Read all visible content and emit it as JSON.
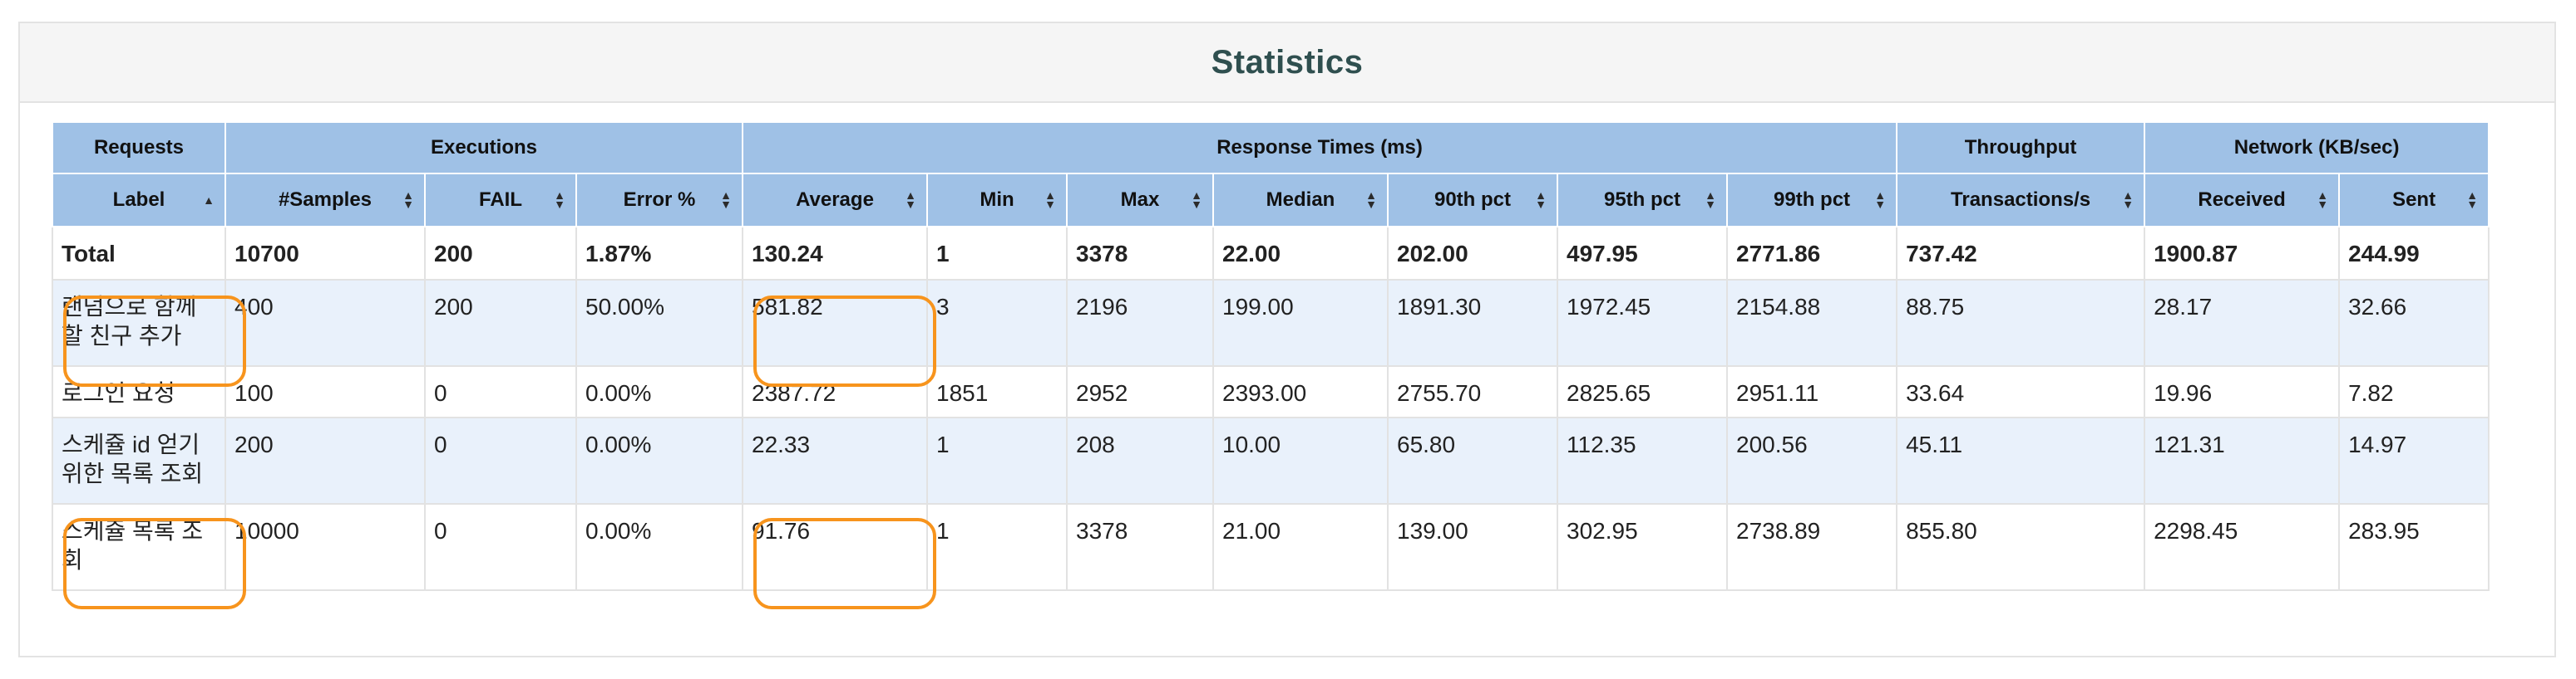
{
  "panel": {
    "title": "Statistics"
  },
  "table": {
    "groups": {
      "requests": "Requests",
      "executions": "Executions",
      "response_times": "Response Times (ms)",
      "throughput": "Throughput",
      "network": "Network (KB/sec)"
    },
    "columns": [
      "Label",
      "#Samples",
      "FAIL",
      "Error %",
      "Average",
      "Min",
      "Max",
      "Median",
      "90th pct",
      "95th pct",
      "99th pct",
      "Transactions/s",
      "Received",
      "Sent"
    ],
    "sort_icons": {
      "sorted_asc": "▲",
      "sortable_up": "▲",
      "sortable_down": "▼"
    },
    "total": [
      "Total",
      "10700",
      "200",
      "1.87%",
      "130.24",
      "1",
      "3378",
      "22.00",
      "202.00",
      "497.95",
      "2771.86",
      "737.42",
      "1900.87",
      "244.99"
    ],
    "rows": [
      [
        "랜덤으로 함께할 친구 추가",
        "400",
        "200",
        "50.00%",
        "581.82",
        "3",
        "2196",
        "199.00",
        "1891.30",
        "1972.45",
        "2154.88",
        "88.75",
        "28.17",
        "32.66"
      ],
      [
        "로그인 요청",
        "100",
        "0",
        "0.00%",
        "2387.72",
        "1851",
        "2952",
        "2393.00",
        "2755.70",
        "2825.65",
        "2951.11",
        "33.64",
        "19.96",
        "7.82"
      ],
      [
        "스케쥴 id 얻기위한 목록 조회",
        "200",
        "0",
        "0.00%",
        "22.33",
        "1",
        "208",
        "10.00",
        "65.80",
        "112.35",
        "200.56",
        "45.11",
        "121.31",
        "14.97"
      ],
      [
        "스케쥴 목록 조회",
        "10000",
        "0",
        "0.00%",
        "91.76",
        "1",
        "3378",
        "21.00",
        "139.00",
        "302.95",
        "2738.89",
        "855.80",
        "2298.45",
        "283.95"
      ]
    ]
  },
  "colors": {
    "header_bg": "#9fc1e6",
    "odd_row_bg": "#e9f1fb",
    "highlight": "#f7941d",
    "title": "#2f4f4f"
  }
}
